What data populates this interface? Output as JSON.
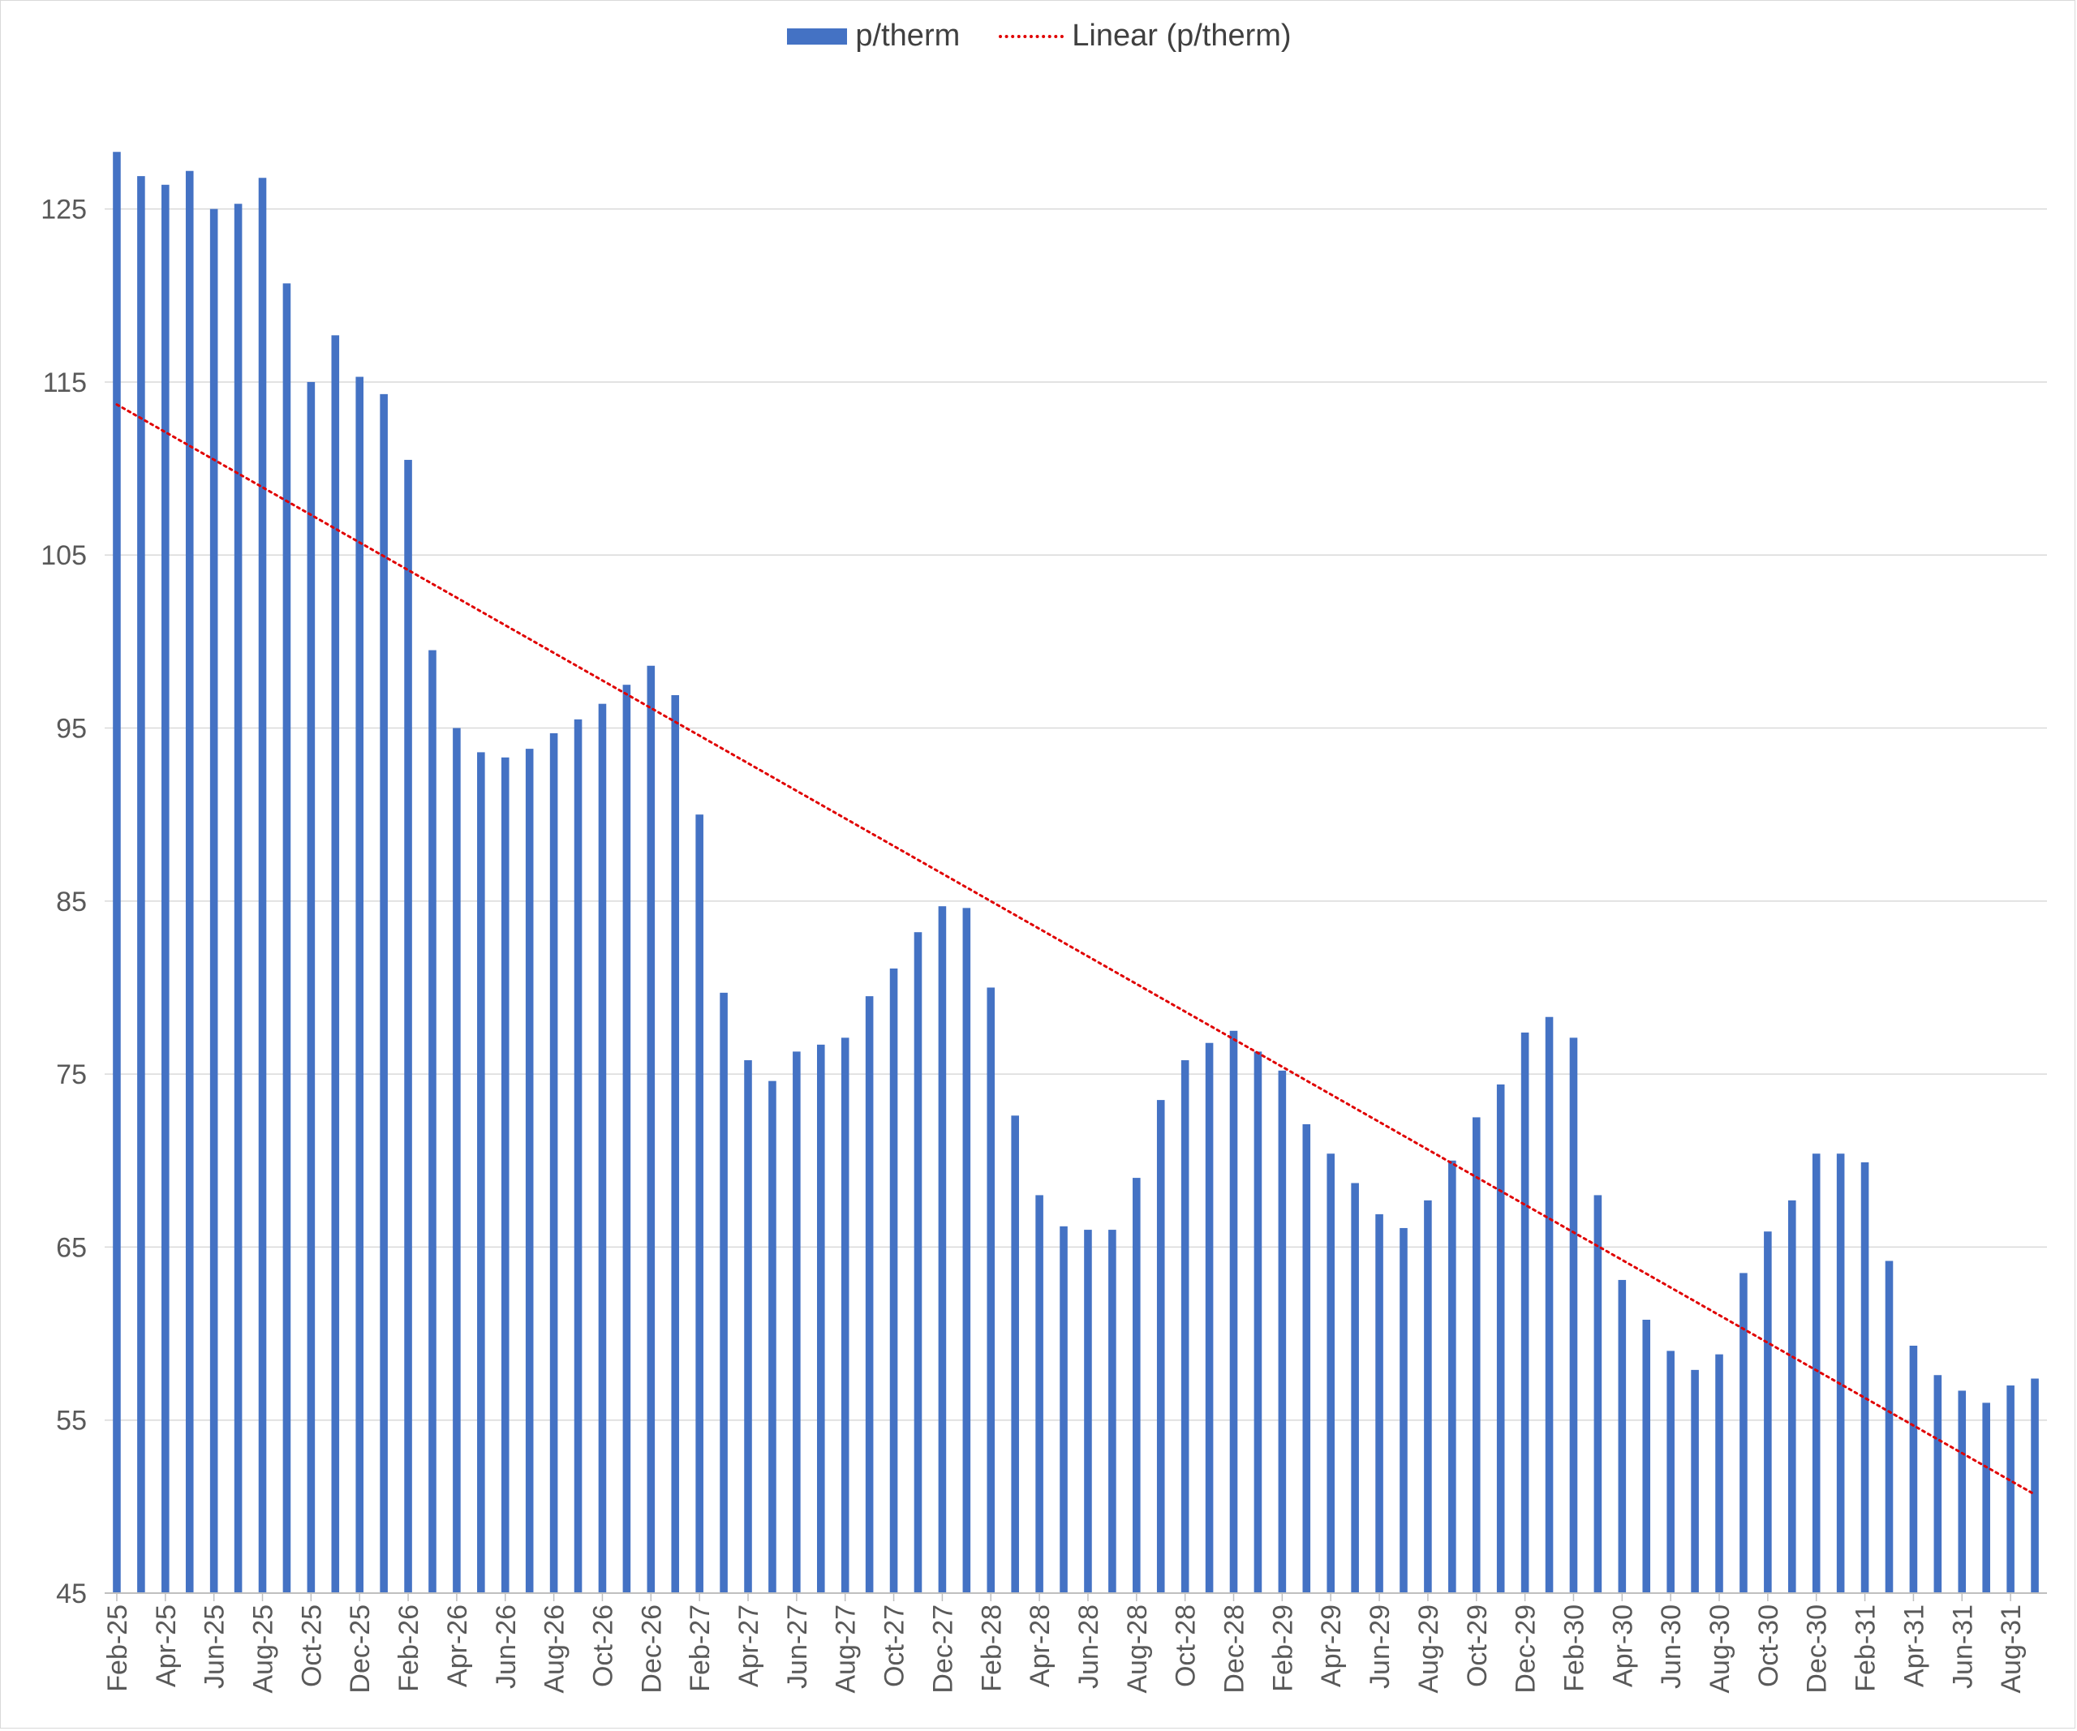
{
  "legend": {
    "bar_label": "p/therm",
    "line_label": "Linear (p/therm)"
  },
  "colors": {
    "bar": "#4472c4",
    "trendline": "#e00000",
    "grid": "#d9d9d9",
    "text": "#595959"
  },
  "chart_data": {
    "type": "bar",
    "title": "",
    "xlabel": "",
    "ylabel": "",
    "ylim": [
      45,
      130
    ],
    "yticks": [
      45,
      55,
      65,
      75,
      85,
      95,
      105,
      115,
      125
    ],
    "grid": true,
    "legend_position": "top",
    "x_tick_labels": [
      "Feb-25",
      "Apr-25",
      "Jun-25",
      "Aug-25",
      "Oct-25",
      "Dec-25",
      "Feb-26",
      "Apr-26",
      "Jun-26",
      "Aug-26",
      "Oct-26",
      "Dec-26",
      "Feb-27",
      "Apr-27",
      "Jun-27",
      "Aug-27",
      "Oct-27",
      "Dec-27",
      "Feb-28",
      "Apr-28",
      "Jun-28",
      "Aug-28",
      "Oct-28",
      "Dec-28",
      "Feb-29",
      "Apr-29",
      "Jun-29",
      "Aug-29",
      "Oct-29",
      "Dec-29",
      "Feb-30",
      "Apr-30",
      "Jun-30",
      "Aug-30",
      "Oct-30",
      "Dec-30",
      "Feb-31",
      "Apr-31",
      "Jun-31",
      "Aug-31"
    ],
    "categories": [
      "Feb-25",
      "Mar-25",
      "Apr-25",
      "May-25",
      "Jun-25",
      "Jul-25",
      "Aug-25",
      "Sep-25",
      "Oct-25",
      "Nov-25",
      "Dec-25",
      "Jan-26",
      "Feb-26",
      "Mar-26",
      "Apr-26",
      "May-26",
      "Jun-26",
      "Jul-26",
      "Aug-26",
      "Sep-26",
      "Oct-26",
      "Nov-26",
      "Dec-26",
      "Jan-27",
      "Feb-27",
      "Mar-27",
      "Apr-27",
      "May-27",
      "Jun-27",
      "Jul-27",
      "Aug-27",
      "Sep-27",
      "Oct-27",
      "Nov-27",
      "Dec-27",
      "Jan-28",
      "Feb-28",
      "Mar-28",
      "Apr-28",
      "May-28",
      "Jun-28",
      "Jul-28",
      "Aug-28",
      "Sep-28",
      "Oct-28",
      "Nov-28",
      "Dec-28",
      "Jan-29",
      "Feb-29",
      "Mar-29",
      "Apr-29",
      "May-29",
      "Jun-29",
      "Jul-29",
      "Aug-29",
      "Sep-29",
      "Oct-29",
      "Nov-29",
      "Dec-29",
      "Jan-30",
      "Feb-30",
      "Mar-30",
      "Apr-30",
      "May-30",
      "Jun-30",
      "Jul-30",
      "Aug-30",
      "Sep-30",
      "Oct-30",
      "Nov-30",
      "Dec-30",
      "Jan-31",
      "Feb-31",
      "Mar-31",
      "Apr-31",
      "May-31",
      "Jun-31",
      "Jul-31",
      "Aug-31",
      "Sep-31"
    ],
    "series": [
      {
        "name": "p/therm",
        "type": "bar",
        "values": [
          128.3,
          126.9,
          126.4,
          127.2,
          125.0,
          125.3,
          126.8,
          120.7,
          115.0,
          117.7,
          115.3,
          114.3,
          110.5,
          99.5,
          95.0,
          93.6,
          93.3,
          93.8,
          94.7,
          95.5,
          96.4,
          97.5,
          98.6,
          96.9,
          90.0,
          79.7,
          75.8,
          74.6,
          76.3,
          76.7,
          77.1,
          79.5,
          81.1,
          83.2,
          84.7,
          84.6,
          80.0,
          72.6,
          68.0,
          66.2,
          66.0,
          66.0,
          69.0,
          73.5,
          75.8,
          76.8,
          77.5,
          76.3,
          75.2,
          72.1,
          70.4,
          68.7,
          66.9,
          66.1,
          67.7,
          70.0,
          72.5,
          74.4,
          77.4,
          78.3,
          77.1,
          68.0,
          63.1,
          60.8,
          59.0,
          57.9,
          58.8,
          63.5,
          65.9,
          67.7,
          70.4,
          70.4,
          69.9,
          64.2,
          59.3,
          57.6,
          56.7,
          56.0,
          57.0,
          57.4
        ]
      },
      {
        "name": "Linear (p/therm)",
        "type": "line",
        "start": 113.7,
        "end": 50.7
      }
    ]
  }
}
